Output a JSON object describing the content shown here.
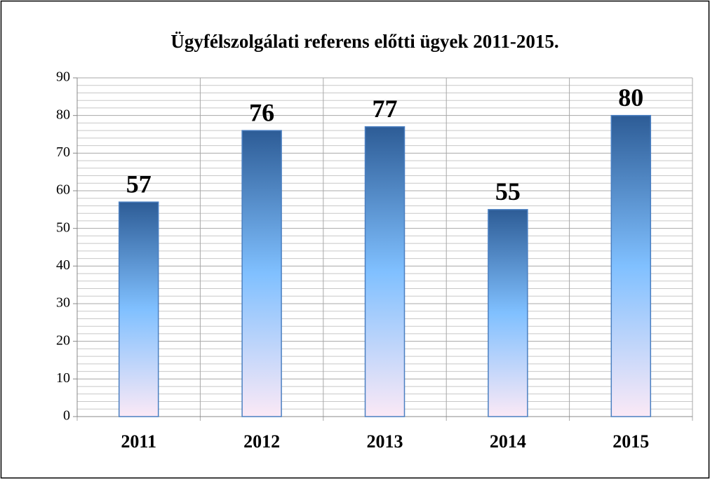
{
  "chart_data": {
    "type": "bar",
    "title": "Ügyfélszolgálati referens előtti ügyek 2011-2015.",
    "categories": [
      "2011",
      "2012",
      "2013",
      "2014",
      "2015"
    ],
    "values": [
      57,
      76,
      77,
      55,
      80
    ],
    "gradient": [
      "#2d5c96",
      "#80c0ff",
      "#fbe9f6"
    ],
    "ylim": [
      0,
      90
    ],
    "yticks": [
      0,
      10,
      20,
      30,
      40,
      50,
      60,
      70,
      80,
      90
    ],
    "yminorticks": [
      2,
      4,
      6,
      8,
      12,
      14,
      16,
      18,
      22,
      24,
      26,
      28,
      32,
      34,
      36,
      38,
      42,
      44,
      46,
      48,
      52,
      54,
      56,
      58,
      62,
      64,
      66,
      68,
      72,
      74,
      76,
      78,
      82,
      84,
      86,
      88
    ],
    "grid": true
  }
}
